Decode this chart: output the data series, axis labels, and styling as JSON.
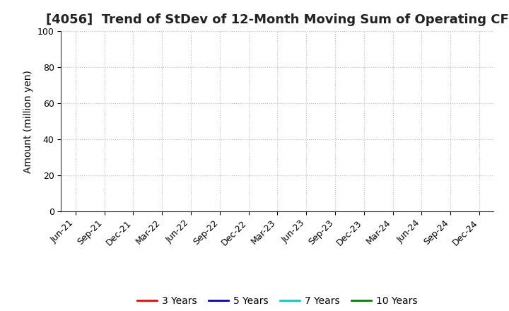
{
  "title": "[4056]  Trend of StDev of 12-Month Moving Sum of Operating CF",
  "ylabel": "Amount (million yen)",
  "ylim": [
    0,
    100
  ],
  "yticks": [
    0,
    20,
    40,
    60,
    80,
    100
  ],
  "x_labels": [
    "Jun-21",
    "Sep-21",
    "Dec-21",
    "Mar-22",
    "Jun-22",
    "Sep-22",
    "Dec-22",
    "Mar-23",
    "Jun-23",
    "Sep-23",
    "Dec-23",
    "Mar-24",
    "Jun-24",
    "Sep-24",
    "Dec-24"
  ],
  "legend_entries": [
    {
      "label": "3 Years",
      "color": "#FF0000"
    },
    {
      "label": "5 Years",
      "color": "#0000CC"
    },
    {
      "label": "7 Years",
      "color": "#00CCCC"
    },
    {
      "label": "10 Years",
      "color": "#008000"
    }
  ],
  "background_color": "#FFFFFF",
  "grid_color": "#BBBBBB",
  "title_fontsize": 13,
  "axis_label_fontsize": 10,
  "tick_fontsize": 9,
  "legend_fontsize": 10
}
